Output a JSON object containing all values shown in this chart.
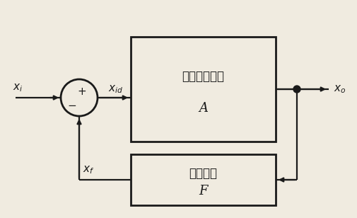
{
  "figure_width": 5.05,
  "figure_height": 3.08,
  "dpi": 100,
  "bg_color": "#f0ebe0",
  "line_color": "#1a1a1a",
  "box_fill": "#f0ebe0",
  "amp_label1": "基本放大电路",
  "amp_label2": "A",
  "fb_label1": "反馈网络",
  "fb_label2": "F"
}
